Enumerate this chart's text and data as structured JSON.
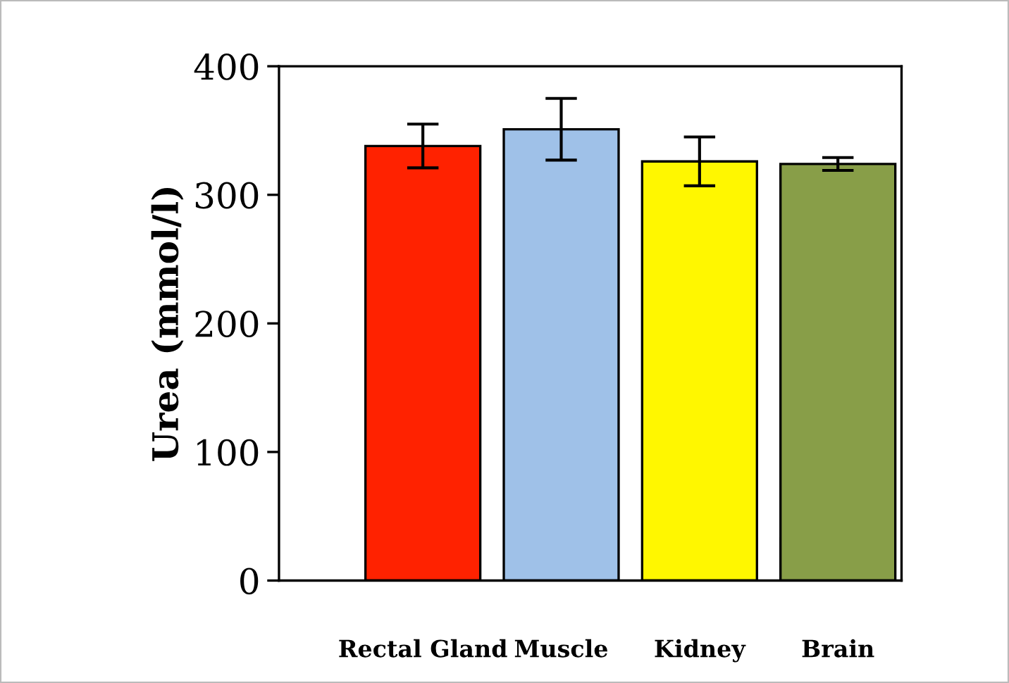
{
  "chart_data": {
    "type": "bar",
    "ylabel": "Urea (mmol/l)",
    "categories": [
      "Rectal Gland",
      "Muscle",
      "Kidney",
      "Brain"
    ],
    "values": [
      338,
      351,
      326,
      324
    ],
    "errors": [
      17,
      24,
      19,
      5
    ],
    "colors": [
      "#ff2200",
      "#9fc1e8",
      "#fff700",
      "#889e48"
    ],
    "ylim": [
      0,
      400
    ],
    "yticks": [
      0,
      100,
      200,
      300,
      400
    ],
    "grid": false,
    "legend": false
  }
}
